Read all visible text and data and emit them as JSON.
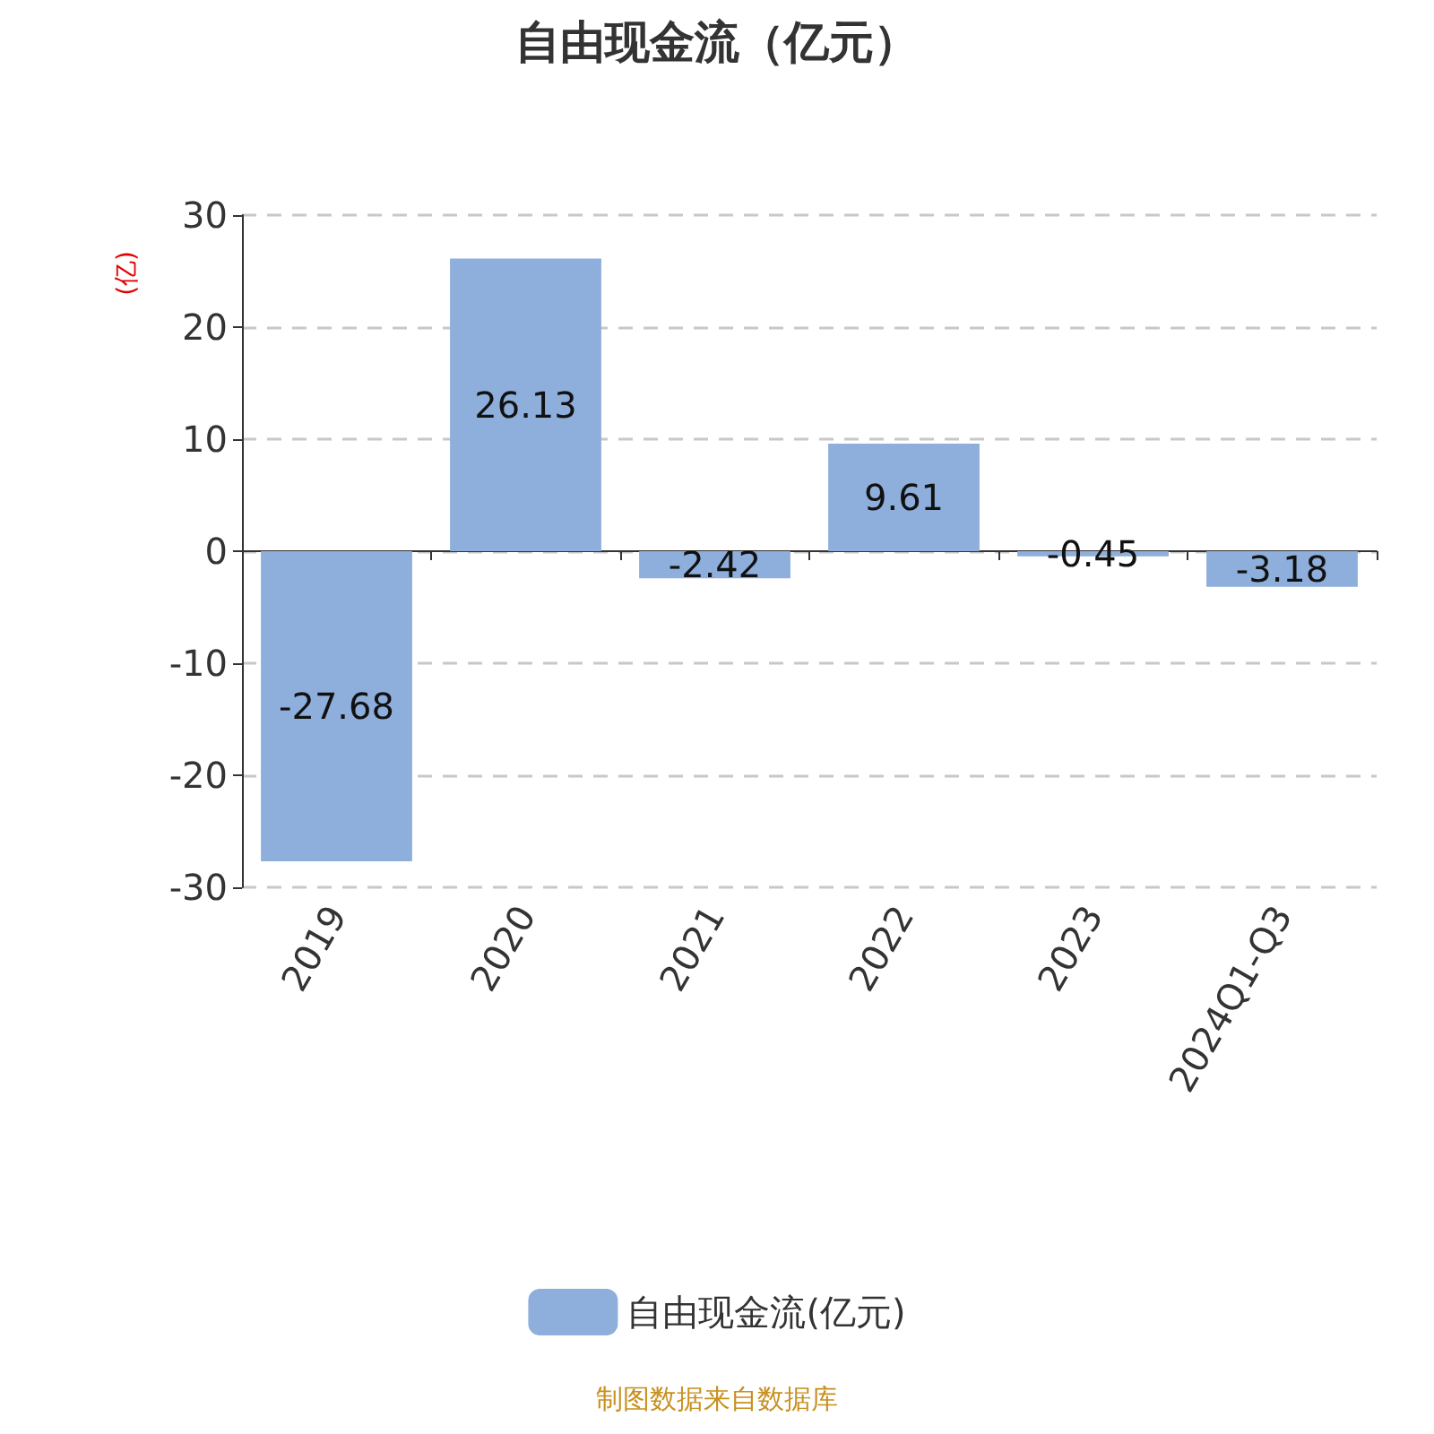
{
  "chart_data": {
    "type": "bar",
    "title": "自由现金流（亿元）",
    "ylabel": "(亿)",
    "categories": [
      "2019",
      "2020",
      "2021",
      "2022",
      "2023",
      "2024Q1-Q3"
    ],
    "series": [
      {
        "name": "自由现金流(亿元)",
        "color": "#8eaedb",
        "values": [
          -27.68,
          26.13,
          -2.42,
          9.61,
          -0.45,
          -3.18
        ]
      }
    ],
    "ylim": [
      -30,
      30
    ],
    "yticks": [
      -30,
      -20,
      -10,
      0,
      10,
      20,
      30
    ],
    "grid": "y",
    "legend": "bottom",
    "data_labels": true,
    "annotations": [
      "制图数据来自数据库"
    ]
  }
}
